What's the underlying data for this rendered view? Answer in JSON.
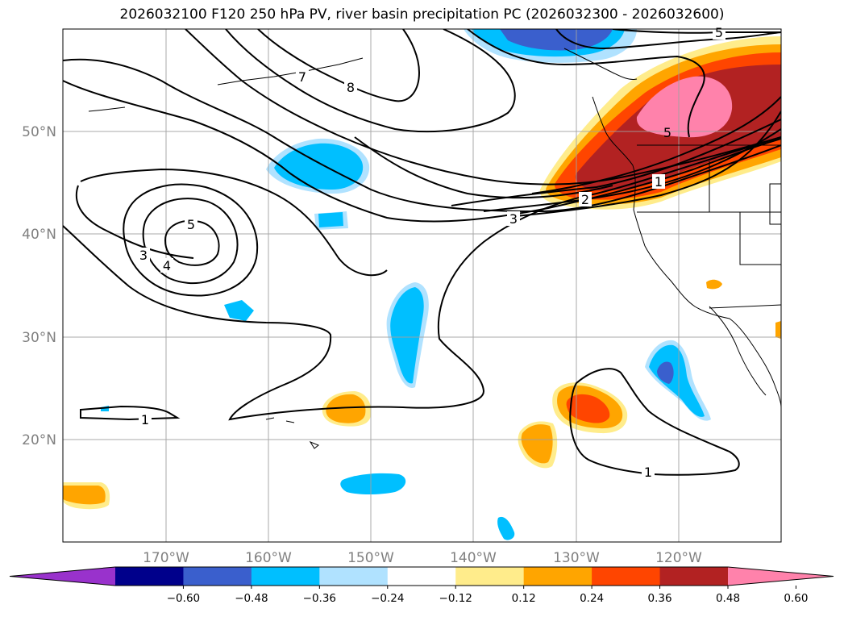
{
  "title": "2026032100 F120 250 hPa PV, river basin precipitation PC (2026032300 - 2026032600)",
  "map": {
    "lon_ticks": [
      "170°W",
      "160°W",
      "150°W",
      "140°W",
      "130°W",
      "120°W"
    ],
    "lat_ticks": [
      "50°N",
      "40°N",
      "30°N",
      "20°N"
    ],
    "pv_contour_labels": [
      "1",
      "1",
      "1",
      "2",
      "3",
      "3",
      "4",
      "5",
      "5",
      "7",
      "8",
      "5"
    ]
  },
  "colorbar": {
    "colors": [
      "#9932cc",
      "#00008b",
      "#3a5fcd",
      "#00bfff",
      "#b0e2ff",
      "#ffffff",
      "#ffec8b",
      "#ffa500",
      "#ff4500",
      "#b22222",
      "#ff82ab"
    ],
    "labels": [
      "−0.60",
      "−0.48",
      "−0.36",
      "−0.24",
      "−0.12",
      "0.12",
      "0.24",
      "0.36",
      "0.48",
      "0.60"
    ]
  },
  "colors": {
    "land_shade": "#ffffff",
    "gridline": "#a0a0a0",
    "contour": "#000000"
  }
}
